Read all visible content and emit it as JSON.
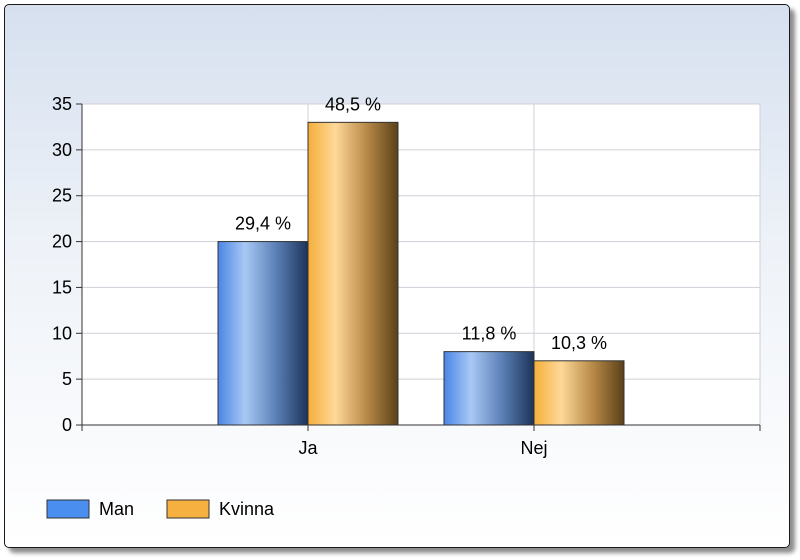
{
  "chart_data": {
    "type": "bar",
    "categories": [
      "Ja",
      "Nej"
    ],
    "series": [
      {
        "name": "Man",
        "values": [
          20,
          8
        ],
        "labels": [
          "29,4 %",
          "11,8 %"
        ],
        "color": "#4a8ef0"
      },
      {
        "name": "Kvinna",
        "values": [
          33,
          7
        ],
        "labels": [
          "48,5 %",
          "10,3 %"
        ],
        "color": "#f5b040"
      }
    ],
    "ylim": [
      0,
      35
    ],
    "yticks": [
      "0",
      "5",
      "10",
      "15",
      "20",
      "25",
      "30",
      "35"
    ],
    "grid": true,
    "legend": "bottom-left"
  }
}
